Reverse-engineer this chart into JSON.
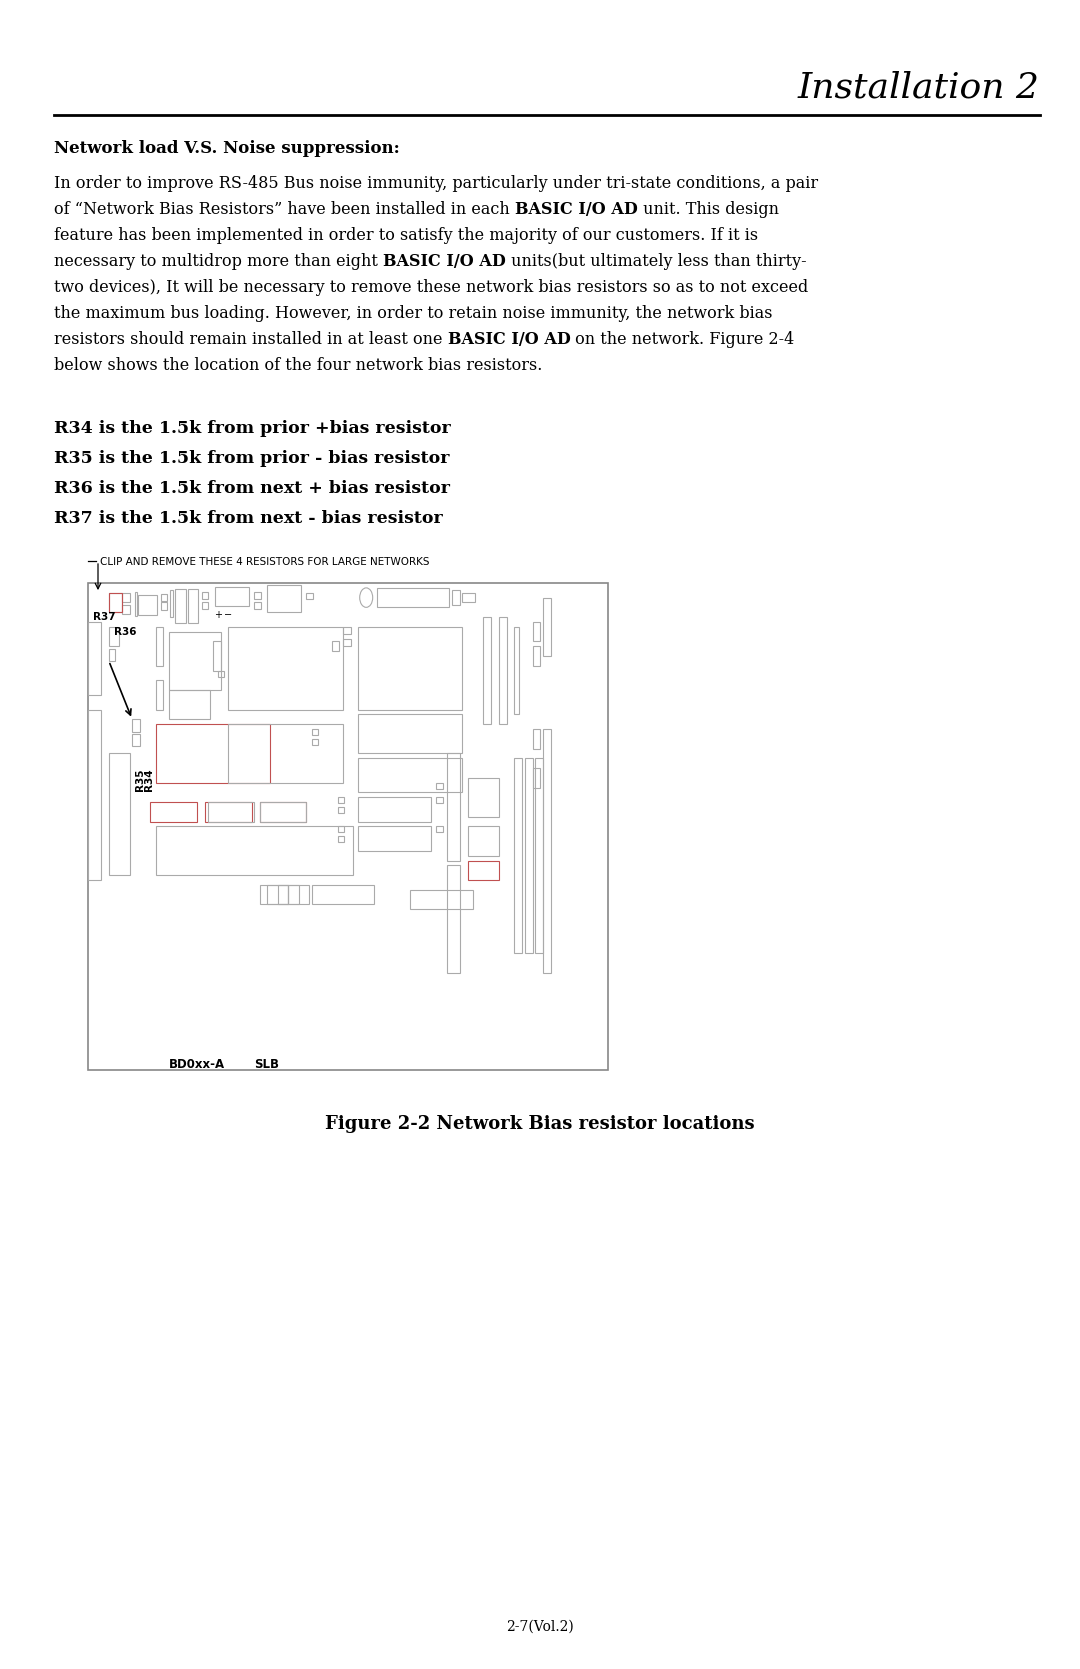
{
  "page_bg": "#ffffff",
  "header_title": "Installation 2",
  "section_heading": "Network load V.S. Noise suppression:",
  "figure_caption": "Figure 2-2 Network Bias resistor locations",
  "page_number": "2-7(Vol.2)",
  "diagram_annotation": "CLIP AND REMOVE THESE 4 RESISTORS FOR LARGE NETWORKS",
  "bd_label": "BD0xx-A",
  "slb_label": "SLB",
  "bullet_lines": [
    "R34 is the 1.5k from prior +bias resistor",
    "R35 is the 1.5k from prior - bias resistor",
    "R36 is the 1.5k from next + bias resistor",
    "R37 is the 1.5k from next - bias resistor"
  ]
}
